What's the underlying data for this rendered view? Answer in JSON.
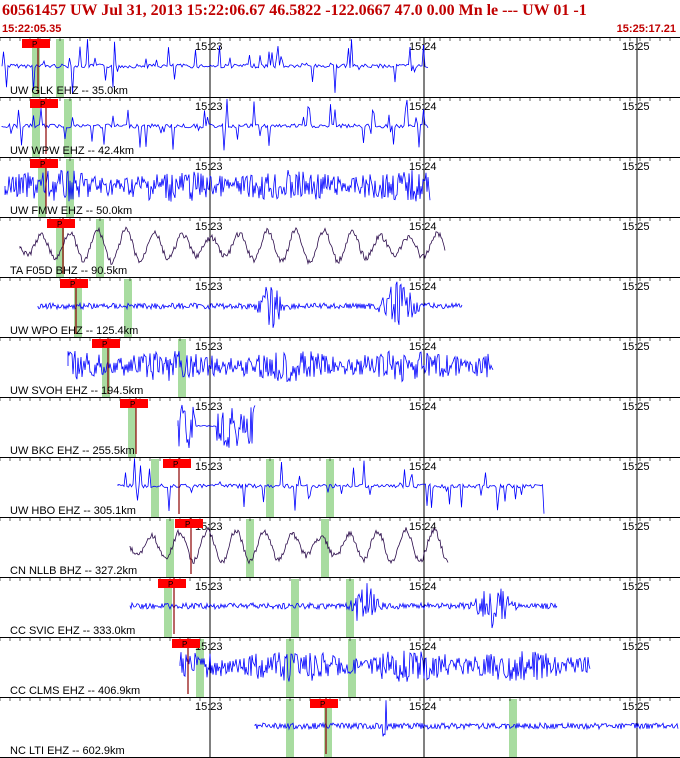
{
  "header": {
    "title": "60561457 UW Jul 31, 2013 15:22:06.67   46.5822 -122.0667 47.0 0.00 Mn le --- UW 01  -1",
    "start_time": "15:22:05.35",
    "end_time": "15:25:17.21"
  },
  "colors": {
    "pick": "#ff0000",
    "trace_blue": "#0000ff",
    "trace_dark": "#2a0a4a",
    "green_band": "#a8dca0"
  },
  "chart_data": {
    "type": "seismogram",
    "time_ticks": [
      "15:23",
      "15:24",
      "15:25"
    ],
    "pick_label": "P",
    "traces": [
      {
        "label": "UW GLK EHZ -- 35.0km",
        "color": "blue",
        "style": "spikes"
      },
      {
        "label": "UW WPW EHZ -- 42.4km",
        "color": "blue",
        "style": "spikes"
      },
      {
        "label": "UW FMW EHZ -- 50.0km",
        "color": "blue",
        "style": "noise"
      },
      {
        "label": "TA F05D BHZ -- 90.5km",
        "color": "dark",
        "style": "wave"
      },
      {
        "label": "UW WPO EHZ -- 125.4km",
        "color": "blue",
        "style": "bursts"
      },
      {
        "label": "UW SVOH EHZ -- 194.5km",
        "color": "blue",
        "style": "noise"
      },
      {
        "label": "UW BKC EHZ -- 255.5km",
        "color": "blue",
        "style": "blocks"
      },
      {
        "label": "UW HBO EHZ -- 305.1km",
        "color": "blue",
        "style": "spikes"
      },
      {
        "label": "CN NLLB BHZ -- 327.2km",
        "color": "dark",
        "style": "wave"
      },
      {
        "label": "CC SVIC EHZ -- 333.0km",
        "color": "blue",
        "style": "bursts"
      },
      {
        "label": "CC CLMS EHZ -- 406.9km",
        "color": "blue",
        "style": "noise"
      },
      {
        "label": "NC LTI EHZ -- 602.9km",
        "color": "blue",
        "style": "quiet"
      }
    ]
  }
}
